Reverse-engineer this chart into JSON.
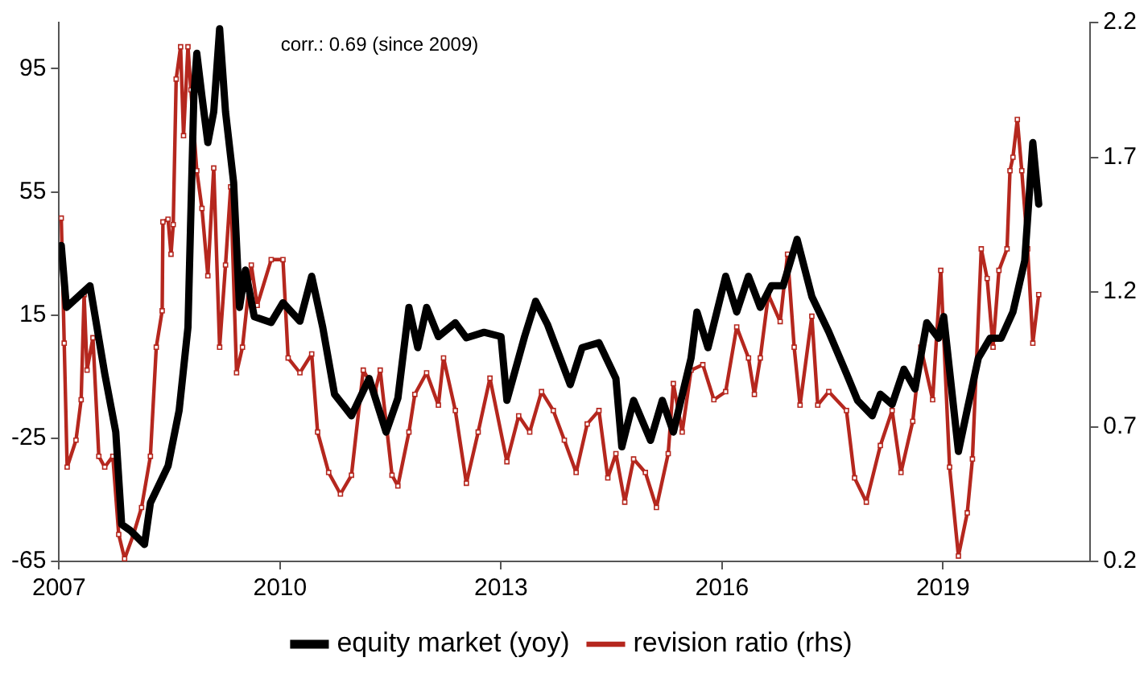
{
  "chart_data": {
    "type": "line",
    "xlim": [
      2007,
      2021
    ],
    "xticks": [
      2007,
      2010,
      2013,
      2016,
      2019
    ],
    "ylim": [
      -65,
      110
    ],
    "yticks": [
      -65,
      -25,
      15,
      55,
      95
    ],
    "y2lim": [
      0.2,
      2.2
    ],
    "y2ticks": [
      0.2,
      0.7,
      1.2,
      1.7,
      2.2
    ],
    "grid": false,
    "legend": "bottom",
    "annotations": [
      "corr.: 0.69 (since 2009)"
    ],
    "series": [
      {
        "name": "equity market (yoy)",
        "color": "#000000",
        "marker": "none",
        "x": [
          2007.03,
          2007.1,
          2007.42,
          2007.62,
          2007.77,
          2007.85,
          2007.97,
          2008.16,
          2008.24,
          2008.48,
          2008.63,
          2008.75,
          2008.83,
          2008.87,
          2008.94,
          2009.02,
          2009.1,
          2009.18,
          2009.26,
          2009.37,
          2009.45,
          2009.53,
          2009.65,
          2009.88,
          2010.04,
          2010.27,
          2010.43,
          2010.58,
          2010.74,
          2010.97,
          2011.21,
          2011.44,
          2011.6,
          2011.75,
          2011.87,
          2011.99,
          2012.15,
          2012.38,
          2012.53,
          2012.77,
          2013,
          2013.08,
          2013.32,
          2013.47,
          2013.63,
          2013.94,
          2014.1,
          2014.33,
          2014.56,
          2014.64,
          2014.8,
          2015.03,
          2015.19,
          2015.34,
          2015.58,
          2015.66,
          2015.81,
          2016.05,
          2016.2,
          2016.36,
          2016.52,
          2016.67,
          2016.83,
          2017.02,
          2017.22,
          2017.45,
          2017.69,
          2017.84,
          2018.04,
          2018.15,
          2018.31,
          2018.47,
          2018.62,
          2018.78,
          2018.94,
          2019.01,
          2019.21,
          2019.33,
          2019.48,
          2019.64,
          2019.79,
          2019.95,
          2020.11,
          2020.22,
          2020.3
        ],
        "values": [
          37.6,
          17.5,
          24.5,
          -4,
          -23,
          -53,
          -55,
          -59.5,
          -46,
          -34,
          -16,
          11,
          86,
          100,
          86,
          71,
          81,
          108,
          81,
          58,
          17.5,
          29.6,
          14.5,
          12.6,
          19,
          13,
          27.6,
          11,
          -10.7,
          -17.7,
          -5.6,
          -23,
          -12,
          17.5,
          4.4,
          17.5,
          8,
          12.5,
          7.6,
          9.4,
          8,
          -12.7,
          8,
          19.5,
          12,
          -7.6,
          4.4,
          6,
          -5.6,
          -27.8,
          -12.7,
          -25.7,
          -12.7,
          -23,
          1,
          16,
          4.4,
          27.6,
          16,
          27.6,
          17.5,
          24.5,
          24.5,
          39.6,
          21,
          9.5,
          -4,
          -12.7,
          -17.7,
          -10.7,
          -14,
          -2.6,
          -9,
          12.5,
          7.5,
          14.5,
          -29.3,
          -15.7,
          1,
          7.5,
          7.5,
          16,
          32.6,
          71,
          51
        ]
      },
      {
        "name": "revision ratio (rhs)",
        "color": "#b5271e",
        "axis": "y2",
        "marker": "square",
        "x": [
          2007.03,
          2007.07,
          2007.11,
          2007.23,
          2007.3,
          2007.34,
          2007.38,
          2007.46,
          2007.54,
          2007.62,
          2007.73,
          2007.81,
          2007.89,
          2008.01,
          2008.12,
          2008.24,
          2008.32,
          2008.4,
          2008.41,
          2008.48,
          2008.52,
          2008.55,
          2008.59,
          2008.65,
          2008.69,
          2008.75,
          2008.79,
          2008.87,
          2008.94,
          2009.02,
          2009.1,
          2009.18,
          2009.26,
          2009.33,
          2009.41,
          2009.49,
          2009.61,
          2009.69,
          2009.88,
          2010.04,
          2010.11,
          2010.27,
          2010.43,
          2010.51,
          2010.66,
          2010.82,
          2010.97,
          2011.13,
          2011.29,
          2011.36,
          2011.52,
          2011.6,
          2011.75,
          2011.83,
          2011.99,
          2012.15,
          2012.22,
          2012.38,
          2012.53,
          2012.69,
          2012.85,
          2013.08,
          2013.24,
          2013.39,
          2013.55,
          2013.71,
          2013.86,
          2014.02,
          2014.17,
          2014.33,
          2014.45,
          2014.56,
          2014.68,
          2014.8,
          2014.96,
          2015.11,
          2015.27,
          2015.34,
          2015.46,
          2015.58,
          2015.74,
          2015.89,
          2016.05,
          2016.2,
          2016.36,
          2016.44,
          2016.52,
          2016.63,
          2016.79,
          2016.89,
          2016.98,
          2017.06,
          2017.22,
          2017.3,
          2017.45,
          2017.69,
          2017.8,
          2017.96,
          2018.15,
          2018.31,
          2018.43,
          2018.59,
          2018.7,
          2018.86,
          2018.97,
          2019.09,
          2019.21,
          2019.33,
          2019.4,
          2019.52,
          2019.6,
          2019.68,
          2019.76,
          2019.87,
          2019.91,
          2019.95,
          2020.01,
          2020.07,
          2020.15,
          2020.22,
          2020.3
        ],
        "values": [
          1.474,
          1.01,
          0.55,
          0.65,
          0.8,
          1.19,
          0.91,
          1.03,
          0.59,
          0.55,
          0.59,
          0.3,
          0.21,
          0.3,
          0.4,
          0.59,
          0.995,
          1.13,
          1.46,
          1.47,
          1.34,
          1.45,
          1.99,
          2.11,
          1.78,
          2.11,
          1.95,
          1.65,
          1.51,
          1.26,
          1.66,
          0.995,
          1.3,
          1.59,
          0.9,
          0.995,
          1.3,
          1.15,
          1.32,
          1.32,
          0.955,
          0.9,
          0.97,
          0.68,
          0.53,
          0.45,
          0.52,
          0.91,
          0.83,
          0.91,
          0.52,
          0.48,
          0.68,
          0.82,
          0.9,
          0.78,
          0.955,
          0.76,
          0.49,
          0.68,
          0.88,
          0.57,
          0.74,
          0.68,
          0.83,
          0.76,
          0.65,
          0.53,
          0.71,
          0.76,
          0.51,
          0.6,
          0.42,
          0.58,
          0.53,
          0.4,
          0.6,
          0.86,
          0.68,
          0.91,
          0.93,
          0.8,
          0.83,
          1.07,
          0.955,
          0.82,
          0.955,
          1.19,
          1.09,
          1.34,
          0.995,
          0.78,
          1.11,
          0.78,
          0.83,
          0.76,
          0.51,
          0.42,
          0.63,
          0.76,
          0.53,
          0.72,
          0.995,
          0.8,
          1.28,
          0.55,
          0.22,
          0.38,
          0.58,
          1.36,
          1.25,
          0.995,
          1.28,
          1.36,
          1.65,
          1.7,
          1.84,
          1.65,
          1.36,
          1.01,
          1.19
        ]
      }
    ]
  }
}
